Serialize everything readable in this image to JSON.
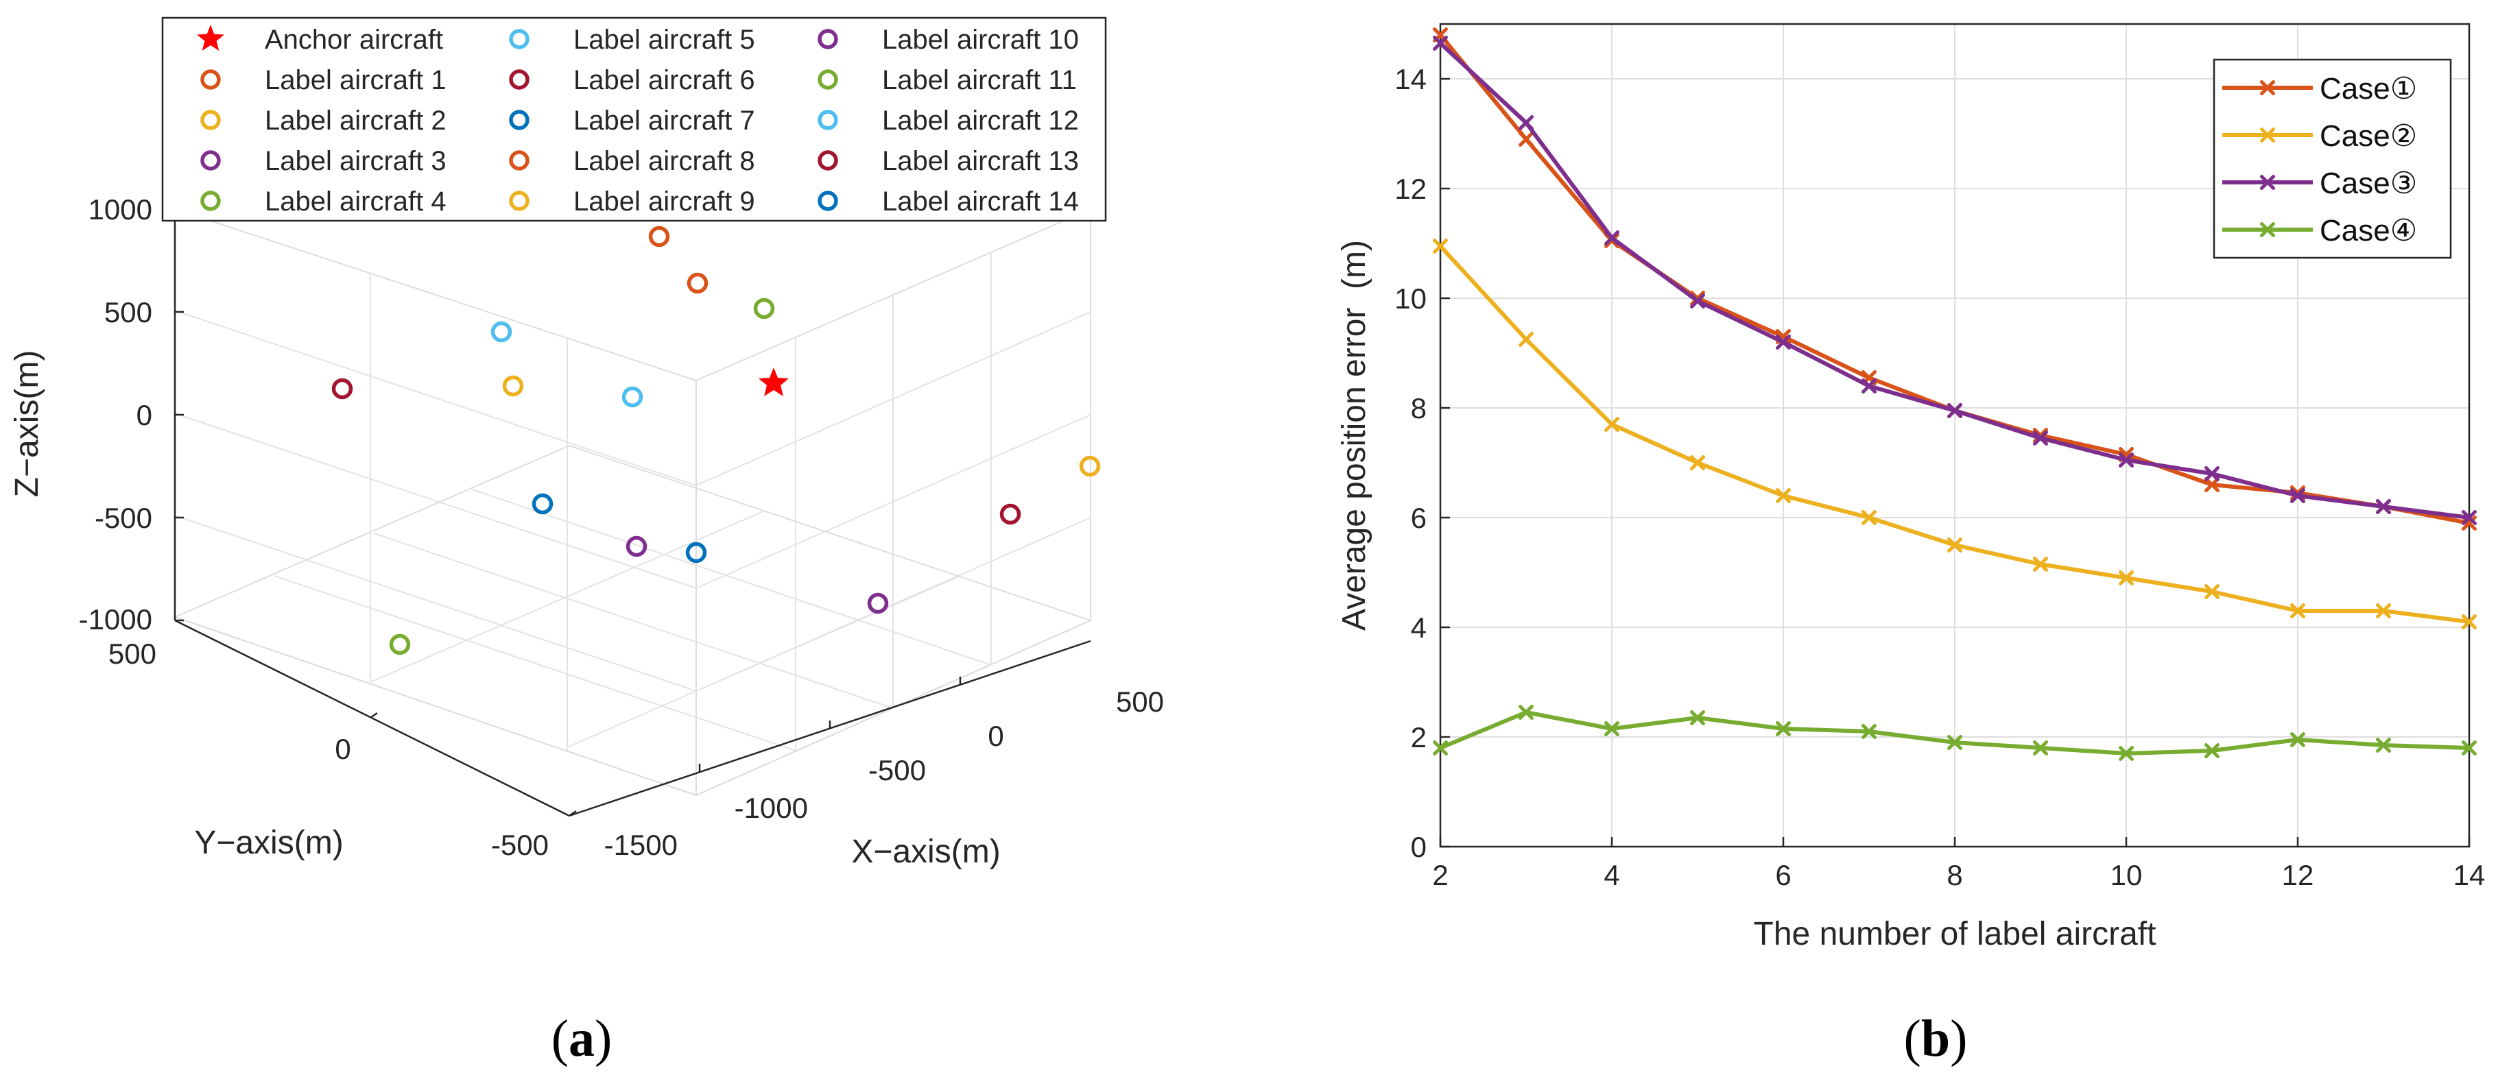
{
  "chart_data": [
    {
      "id": "a",
      "type": "scatter3d",
      "caption": "a",
      "xlabel": "X−axis(m)",
      "ylabel": "Y−axis(m)",
      "zlabel": "Z−axis(m)",
      "x_ticks": [
        "-1500",
        "-1000",
        "-500",
        "0",
        "500"
      ],
      "y_ticks": [
        "500",
        "0",
        "-500"
      ],
      "z_ticks": [
        "1000",
        "500",
        "0",
        "-500",
        "-1000"
      ],
      "xlim": [
        -1500,
        500
      ],
      "ylim": [
        -500,
        500
      ],
      "zlim": [
        -1000,
        1000
      ],
      "legend_entries": [
        {
          "label": "Anchor aircraft",
          "color": "#ff0000",
          "marker": "star"
        },
        {
          "label": "Label aircraft 1",
          "color": "#d95319",
          "marker": "circle"
        },
        {
          "label": "Label aircraft 2",
          "color": "#edb120",
          "marker": "circle"
        },
        {
          "label": "Label aircraft 3",
          "color": "#7e2f8e",
          "marker": "circle"
        },
        {
          "label": "Label aircraft 4",
          "color": "#77ac30",
          "marker": "circle"
        },
        {
          "label": "Label aircraft 5",
          "color": "#4dbeee",
          "marker": "circle"
        },
        {
          "label": "Label aircraft 6",
          "color": "#a2142f",
          "marker": "circle"
        },
        {
          "label": "Label aircraft 7",
          "color": "#0072bd",
          "marker": "circle"
        },
        {
          "label": "Label aircraft 8",
          "color": "#d95319",
          "marker": "circle"
        },
        {
          "label": "Label aircraft 9",
          "color": "#edb120",
          "marker": "circle"
        },
        {
          "label": "Label aircraft 10",
          "color": "#7e2f8e",
          "marker": "circle"
        },
        {
          "label": "Label aircraft 11",
          "color": "#77ac30",
          "marker": "circle"
        },
        {
          "label": "Label aircraft 12",
          "color": "#4dbeee",
          "marker": "circle"
        },
        {
          "label": "Label aircraft 13",
          "color": "#a2142f",
          "marker": "circle"
        },
        {
          "label": "Label aircraft 14",
          "color": "#0072bd",
          "marker": "circle"
        }
      ],
      "points": [
        {
          "name": "Anchor aircraft",
          "x": 200,
          "y": 0,
          "z": 50
        },
        {
          "name": "Label aircraft 1",
          "x": -300,
          "y": 300,
          "z": 700
        },
        {
          "name": "Label aircraft 2",
          "x": -800,
          "y": 0,
          "z": 100
        },
        {
          "name": "Label aircraft 3",
          "x": -700,
          "y": -400,
          "z": -400
        },
        {
          "name": "Label aircraft 4",
          "x": 0,
          "y": 300,
          "z": -700
        },
        {
          "name": "Label aircraft 5",
          "x": -500,
          "y": -100,
          "z": 500
        },
        {
          "name": "Label aircraft 6",
          "x": -1200,
          "y": 0,
          "z": 200
        },
        {
          "name": "Label aircraft 7",
          "x": -600,
          "y": 0,
          "z": -300
        },
        {
          "name": "Label aircraft 8",
          "x": -100,
          "y": 0,
          "z": 900
        },
        {
          "name": "Label aircraft 9",
          "x": 400,
          "y": -400,
          "z": -100
        },
        {
          "name": "Label aircraft 10",
          "x": 0,
          "y": -400,
          "z": -500
        },
        {
          "name": "Label aircraft 11",
          "x": 100,
          "y": 200,
          "z": 300
        },
        {
          "name": "Label aircraft 12",
          "x": -500,
          "y": 200,
          "z": 100
        },
        {
          "name": "Label aircraft 13",
          "x": 400,
          "y": -200,
          "z": -300
        },
        {
          "name": "Label aircraft 14",
          "x": -300,
          "y": -200,
          "z": -300
        }
      ]
    },
    {
      "id": "b",
      "type": "line",
      "caption": "b",
      "title": "",
      "xlabel": "The number of label aircraft",
      "ylabel": "Average position error  (m)",
      "xlim": [
        2,
        14
      ],
      "ylim": [
        0,
        15
      ],
      "x_ticks": [
        "2",
        "4",
        "6",
        "8",
        "10",
        "12",
        "14"
      ],
      "y_ticks": [
        "0",
        "2",
        "4",
        "6",
        "8",
        "10",
        "12",
        "14"
      ],
      "grid": true,
      "legend_position": "top-right",
      "x": [
        2,
        3,
        4,
        5,
        6,
        7,
        8,
        9,
        10,
        11,
        12,
        13,
        14
      ],
      "series": [
        {
          "name": "Case①",
          "color": "#d95319",
          "values": [
            14.8,
            12.9,
            11.05,
            10.0,
            9.3,
            8.55,
            7.95,
            7.5,
            7.15,
            6.6,
            6.45,
            6.2,
            5.9
          ]
        },
        {
          "name": "Case②",
          "color": "#edb120",
          "values": [
            10.95,
            9.25,
            7.7,
            7.0,
            6.4,
            6.0,
            5.5,
            5.15,
            4.9,
            4.65,
            4.3,
            4.3,
            4.1
          ]
        },
        {
          "name": "Case③",
          "color": "#7e2f8e",
          "values": [
            14.65,
            13.2,
            11.1,
            9.95,
            9.2,
            8.4,
            7.95,
            7.45,
            7.05,
            6.8,
            6.4,
            6.2,
            6.0
          ]
        },
        {
          "name": "Case④",
          "color": "#77ac30",
          "values": [
            1.8,
            2.45,
            2.15,
            2.35,
            2.15,
            2.1,
            1.9,
            1.8,
            1.7,
            1.75,
            1.95,
            1.85,
            1.8
          ]
        }
      ]
    }
  ]
}
